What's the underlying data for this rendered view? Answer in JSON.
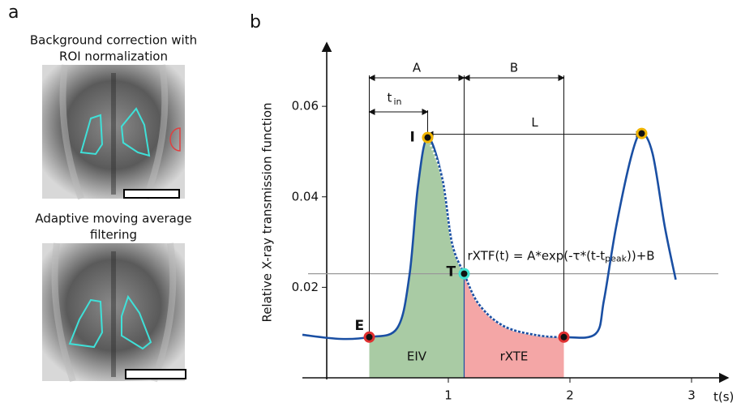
{
  "panel_a": {
    "label": "a",
    "images": [
      {
        "caption": [
          "Background correction with",
          "ROI normalization"
        ]
      },
      {
        "caption": [
          "Adaptive moving average",
          "filtering"
        ]
      }
    ]
  },
  "chart_data": {
    "type": "line",
    "label": "b",
    "x": [
      -0.2,
      0.11,
      0.35,
      0.58,
      0.68,
      0.75,
      0.83,
      0.95,
      1.03,
      1.13,
      1.25,
      1.45,
      1.71,
      1.95,
      2.21,
      2.28,
      2.38,
      2.51,
      2.59,
      2.68,
      2.78,
      2.87
    ],
    "values": [
      0.0095,
      0.0086,
      0.009,
      0.011,
      0.0226,
      0.0423,
      0.0531,
      0.0441,
      0.0298,
      0.023,
      0.0163,
      0.0115,
      0.0095,
      0.009,
      0.0097,
      0.0172,
      0.0334,
      0.0495,
      0.054,
      0.0495,
      0.0334,
      0.0217
    ],
    "color": "#1a4fa3",
    "xlim": [
      -0.2,
      3.3
    ],
    "ylim": [
      0,
      0.074
    ],
    "xticks": [
      1,
      2,
      3
    ],
    "yticks": [
      0.02,
      0.04,
      0.06
    ],
    "xlabel": "t(s)",
    "ylabel": "Relative X-ray transmission function",
    "annotations": {
      "E": "E",
      "I": "I",
      "T": "T",
      "A": "A",
      "B": "B",
      "L": "L",
      "t_in": [
        "t",
        "in"
      ],
      "EIV": "EIV",
      "rXTE": "rXTE",
      "formula": [
        "rXTF(t) = A*exp(-τ*(t-t",
        "peak",
        "))+B"
      ]
    }
  }
}
